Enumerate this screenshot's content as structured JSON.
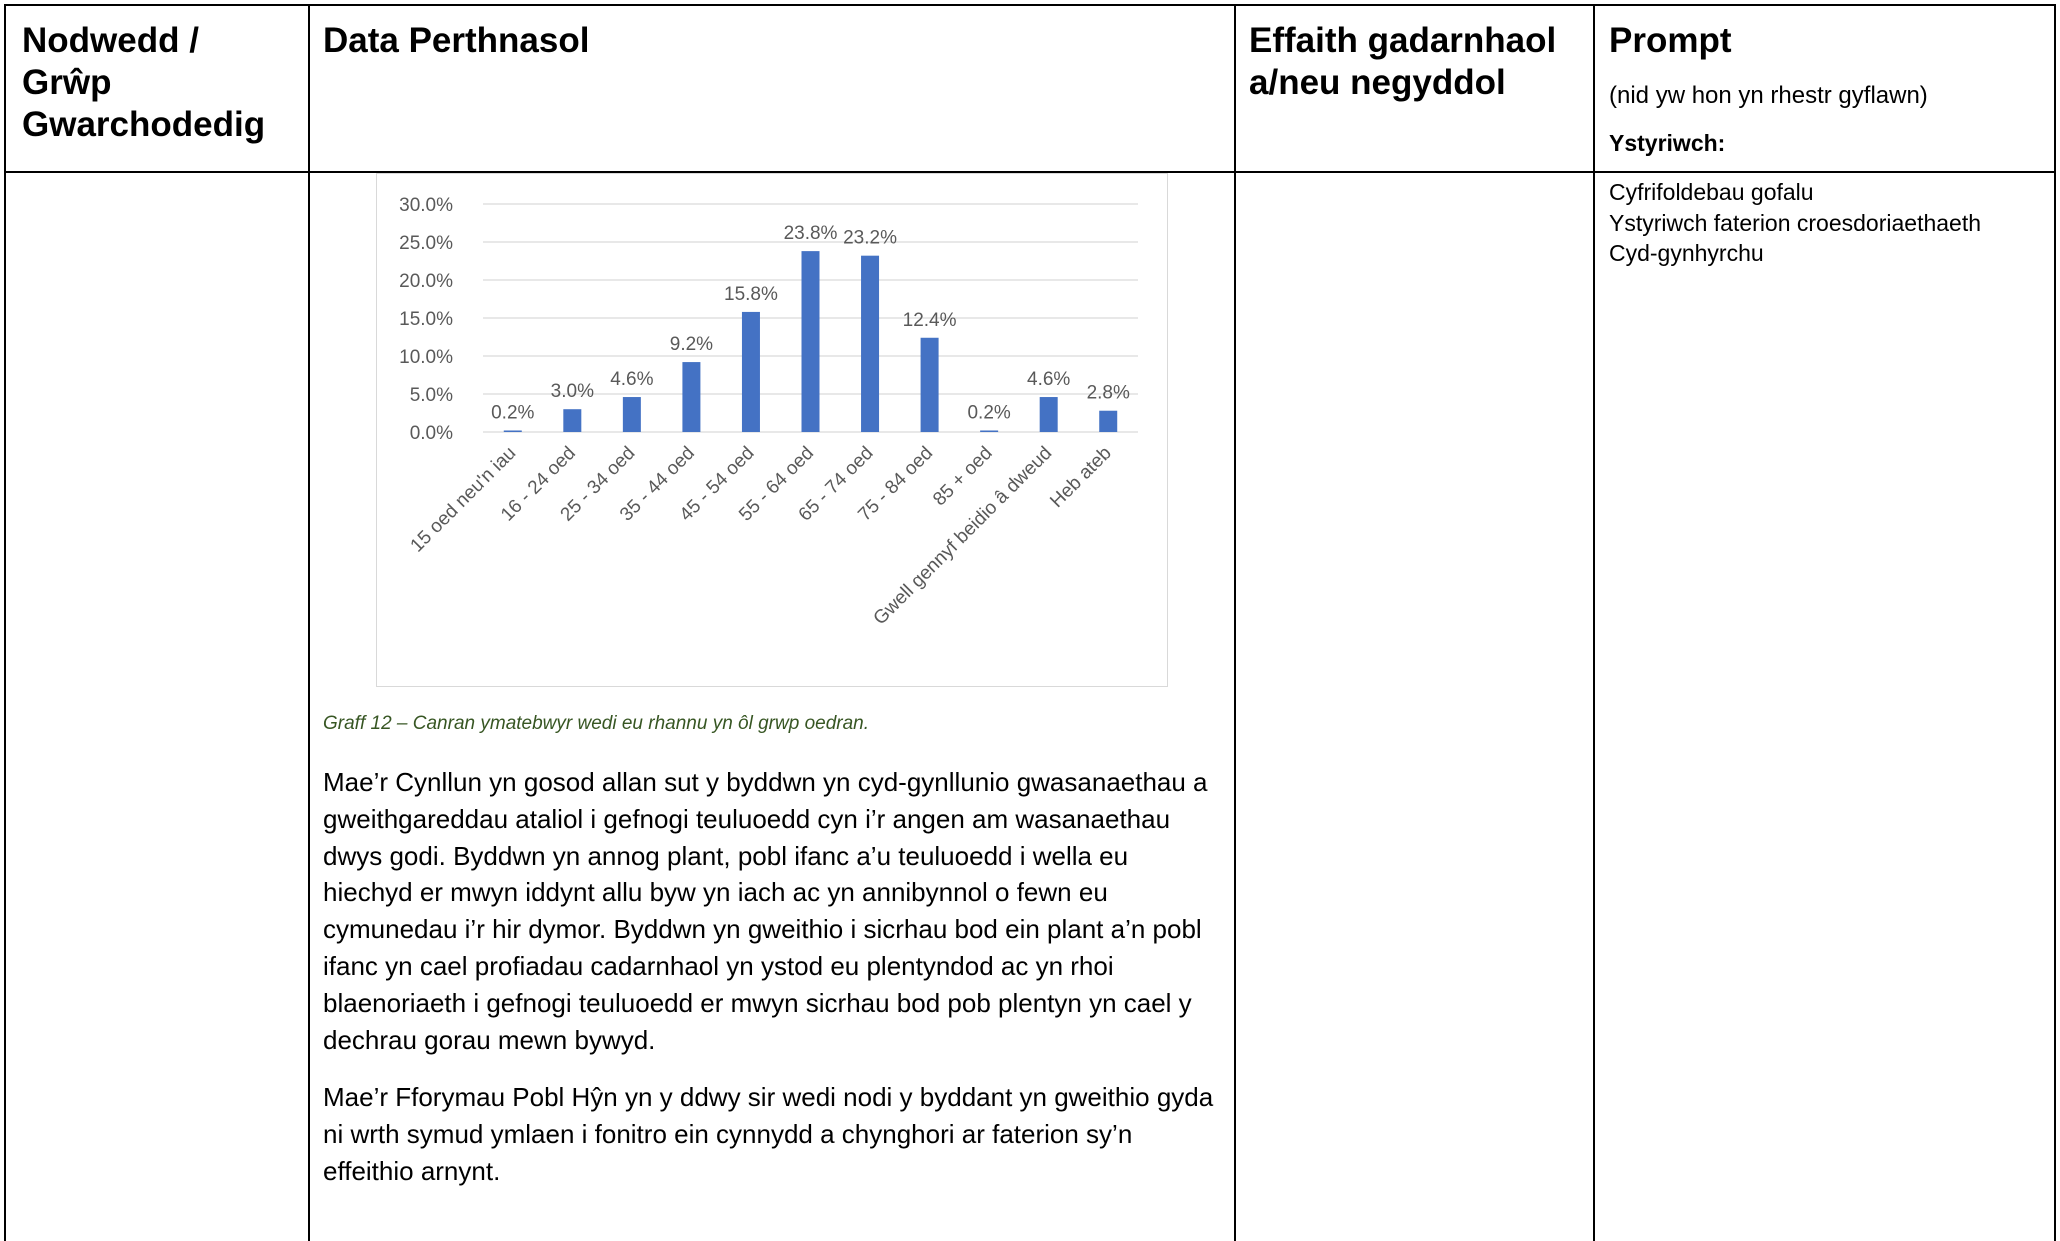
{
  "table": {
    "headers": [
      "Nodwedd / Grŵp Gwarchodedig",
      "Data Perthnasol",
      "Effaith gadarnhaol a/neu negyddol",
      "Prompt"
    ],
    "prompt_note": "(nid yw hon yn rhestr gyflawn)",
    "prompt_consider": "Ystyriwch:",
    "prompt_items": [
      "Cyfrifoldebau gofalu",
      "Ystyriwch faterion croesdoriaethaeth",
      "Cyd-gynhyrchu"
    ],
    "caption": "Graff 12 – Canran ymatebwyr wedi eu rhannu yn ôl grwp oedran.",
    "paragraphs": [
      "Mae’r Cynllun yn gosod allan sut y byddwn yn cyd-gynllunio gwasanaethau a gweithgareddau ataliol i gefnogi teuluoedd cyn i’r angen am wasanaethau dwys godi.  Byddwn yn annog plant, pobl ifanc a’u teuluoedd i wella eu hiechyd er mwyn iddynt allu byw yn iach ac yn annibynnol o fewn eu cymunedau i’r hir dymor.  Byddwn yn gweithio i sicrhau bod ein plant a’n pobl ifanc yn cael profiadau cadarnhaol yn ystod eu plentyndod ac yn rhoi blaenoriaeth i gefnogi teuluoedd er mwyn sicrhau bod pob plentyn yn cael y dechrau gorau mewn bywyd.",
      "Mae’r Fforymau Pobl Hŷn yn y ddwy sir wedi nodi y byddant yn gweithio gyda ni wrth symud ymlaen i fonitro ein cynnydd a chynghori ar faterion sy’n effeithio arnynt."
    ]
  },
  "chart_data": {
    "type": "bar",
    "categories": [
      "15 oed neu'n iau",
      "16 - 24 oed",
      "25 - 34 oed",
      "35 - 44 oed",
      "45 - 54 oed",
      "55 - 64 oed",
      "65 - 74 oed",
      "75 - 84 oed",
      "85 + oed",
      "Gwell gennyf beidio â dweud",
      "Heb ateb"
    ],
    "values": [
      0.2,
      3.0,
      4.6,
      9.2,
      15.8,
      23.8,
      23.2,
      12.4,
      0.2,
      4.6,
      2.8
    ],
    "value_labels": [
      "0.2%",
      "3.0%",
      "4.6%",
      "9.2%",
      "15.8%",
      "23.8%",
      "23.2%",
      "12.4%",
      "0.2%",
      "4.6%",
      "2.8%"
    ],
    "color": "#4472c4",
    "ylim": [
      0,
      30
    ],
    "yticks": [
      {
        "value": 0,
        "label": "0.0%"
      },
      {
        "value": 5,
        "label": "5.0%"
      },
      {
        "value": 10,
        "label": "10.0%"
      },
      {
        "value": 15,
        "label": "15.0%"
      },
      {
        "value": 20,
        "label": "20.0%"
      },
      {
        "value": 25,
        "label": "25.0%"
      },
      {
        "value": 30,
        "label": "30.0%"
      }
    ],
    "grid": true
  }
}
